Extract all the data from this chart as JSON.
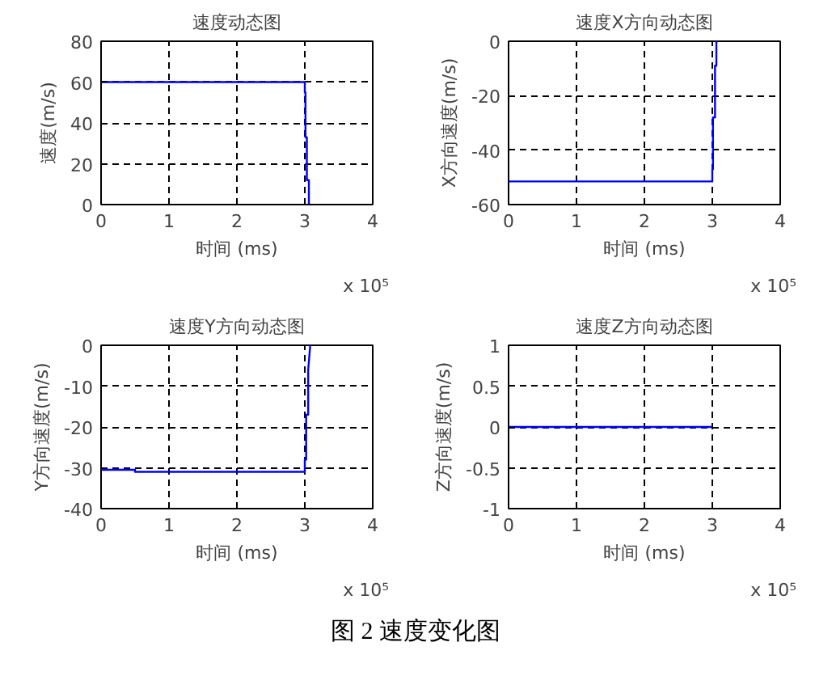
{
  "chart_data": [
    {
      "type": "line",
      "title": "速度动态图",
      "xlabel": "时间 (ms)",
      "ylabel": "速度(m/s)",
      "x": [
        0,
        3.0,
        3.0,
        3.01,
        3.01,
        3.03,
        3.03,
        3.06,
        3.06,
        3.08
      ],
      "series": [
        {
          "color": "#0000ff",
          "values": [
            60,
            60,
            55,
            55,
            33,
            33,
            12,
            12,
            0,
            0
          ]
        }
      ],
      "xlim": [
        0,
        4
      ],
      "ylim": [
        0,
        80
      ],
      "xticks": [
        0,
        1,
        2,
        3,
        4
      ],
      "yticks": [
        0,
        20,
        40,
        60,
        80
      ],
      "grid": true,
      "annotations": [
        "x 10⁵"
      ]
    },
    {
      "type": "line",
      "title": "速度X方向动态图",
      "xlabel": "时间 (ms)",
      "ylabel": "X方向速度(m/s)",
      "x": [
        0,
        3.0,
        3.0,
        3.01,
        3.01,
        3.04,
        3.04,
        3.06,
        3.06,
        3.08
      ],
      "series": [
        {
          "color": "#0000ff",
          "values": [
            -51.5,
            -51.5,
            -47,
            -47,
            -28,
            -28,
            -9,
            -9,
            0,
            0
          ]
        }
      ],
      "xlim": [
        0,
        4
      ],
      "ylim": [
        -60,
        0
      ],
      "xticks": [
        0,
        1,
        2,
        3,
        4
      ],
      "yticks": [
        -60,
        -40,
        -20,
        0
      ],
      "grid": true,
      "annotations": [
        "x 10⁵"
      ]
    },
    {
      "type": "line",
      "title": "速度Y方向动态图",
      "xlabel": "时间 (ms)",
      "ylabel": "Y方向速度(m/s)",
      "x": [
        0,
        0.5,
        0.5,
        3.0,
        3.0,
        3.02,
        3.02,
        3.05,
        3.05,
        3.08
      ],
      "series": [
        {
          "color": "#0000ff",
          "values": [
            -30.5,
            -30.5,
            -31,
            -31,
            -28,
            -28,
            -17,
            -17,
            -6,
            0
          ]
        }
      ],
      "xlim": [
        0,
        4
      ],
      "ylim": [
        -40,
        0
      ],
      "xticks": [
        0,
        1,
        2,
        3,
        4
      ],
      "yticks": [
        -40,
        -30,
        -20,
        -10,
        0
      ],
      "grid": true,
      "annotations": [
        "x 10⁵"
      ]
    },
    {
      "type": "line",
      "title": "速度Z方向动态图",
      "xlabel": "时间 (ms)",
      "ylabel": "Z方向速度(m/s)",
      "x": [
        0,
        3.0
      ],
      "series": [
        {
          "color": "#0000ff",
          "values": [
            0,
            0
          ]
        }
      ],
      "xlim": [
        0,
        4
      ],
      "ylim": [
        -1,
        1
      ],
      "xticks": [
        0,
        1,
        2,
        3,
        4
      ],
      "yticks": [
        -1,
        -0.5,
        0,
        0.5,
        1
      ],
      "grid": true,
      "annotations": [
        "x 10⁵",
        "图 2  速度变化图"
      ]
    }
  ]
}
